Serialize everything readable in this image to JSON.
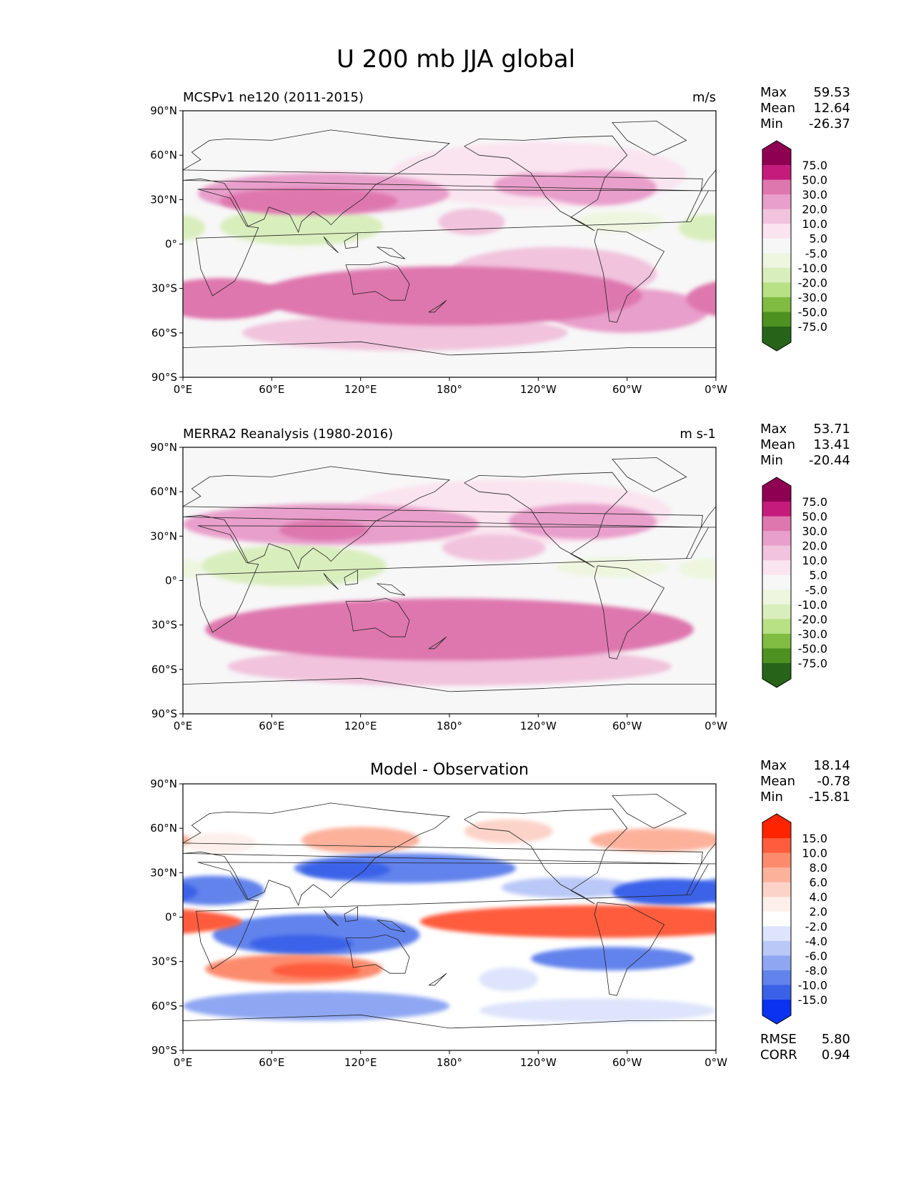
{
  "figure_title": "U 200 mb JJA global",
  "chart_data": [
    {
      "type": "heatmap",
      "title": "MCSPv1 ne120 (2011-2015)",
      "units": "m/s",
      "xlabel": "",
      "ylabel": "",
      "xticks": [
        "0°E",
        "60°E",
        "120°E",
        "180°",
        "120°W",
        "60°W",
        "0°W"
      ],
      "yticks": [
        "90°N",
        "60°N",
        "30°N",
        "0°",
        "30°S",
        "60°S",
        "90°S"
      ],
      "xlim": [
        0,
        360
      ],
      "ylim": [
        -90,
        90
      ],
      "stats": {
        "max": "59.53",
        "mean": "12.64",
        "min": "-26.37"
      },
      "colorbar": {
        "levels": [
          "75.0",
          "50.0",
          "30.0",
          "20.0",
          "10.0",
          "5.0",
          "-5.0",
          "-10.0",
          "-20.0",
          "-30.0",
          "-50.0",
          "-75.0"
        ],
        "colors": [
          "#8e0152",
          "#c51b7d",
          "#de77ae",
          "#e89fcb",
          "#f1c3dd",
          "#fae4ef",
          "#f7f7f7",
          "#eef6e0",
          "#d9eebd",
          "#b8e186",
          "#7fbc41",
          "#4d9221",
          "#276419"
        ]
      },
      "field": [
        {
          "lon": 240,
          "lat": 47,
          "w": 200,
          "h": 22,
          "u": 8
        },
        {
          "lon": 95,
          "lat": 34,
          "w": 170,
          "h": 14,
          "u": 22
        },
        {
          "lon": 85,
          "lat": 29,
          "w": 120,
          "h": 9,
          "u": 31
        },
        {
          "lon": 280,
          "lat": 38,
          "w": 80,
          "h": 12,
          "u": 21
        },
        {
          "lon": 240,
          "lat": 40,
          "w": 60,
          "h": 8,
          "u": 24
        },
        {
          "lon": 195,
          "lat": 15,
          "w": 45,
          "h": 9,
          "u": 12
        },
        {
          "lon": 80,
          "lat": 12,
          "w": 110,
          "h": 13,
          "u": -16
        },
        {
          "lon": 355,
          "lat": 11,
          "w": 40,
          "h": 9,
          "u": -14
        },
        {
          "lon": 295,
          "lat": 15,
          "w": 60,
          "h": 7,
          "u": -8
        },
        {
          "lon": 180,
          "lat": -35,
          "w": 260,
          "h": 20,
          "u": 34
        },
        {
          "lon": 160,
          "lat": -30,
          "w": 95,
          "h": 7,
          "u": 42
        },
        {
          "lon": 25,
          "lat": -37,
          "w": 90,
          "h": 14,
          "u": 32
        },
        {
          "lon": 300,
          "lat": -45,
          "w": 110,
          "h": 15,
          "u": 27
        },
        {
          "lon": 150,
          "lat": -60,
          "w": 220,
          "h": 12,
          "u": 12
        },
        {
          "lon": 250,
          "lat": -20,
          "w": 140,
          "h": 18,
          "u": 16
        }
      ]
    },
    {
      "type": "heatmap",
      "title": "MERRA2 Reanalysis (1980-2016)",
      "units": "m s-1",
      "xlabel": "",
      "ylabel": "",
      "xticks": [
        "0°E",
        "60°E",
        "120°E",
        "180°",
        "120°W",
        "60°W",
        "0°W"
      ],
      "yticks": [
        "90°N",
        "60°N",
        "30°N",
        "0°",
        "30°S",
        "60°S",
        "90°S"
      ],
      "xlim": [
        0,
        360
      ],
      "ylim": [
        -90,
        90
      ],
      "stats": {
        "max": "53.71",
        "mean": "13.41",
        "min": "-20.44"
      },
      "colorbar": {
        "levels": [
          "75.0",
          "50.0",
          "30.0",
          "20.0",
          "10.0",
          "5.0",
          "-5.0",
          "-10.0",
          "-20.0",
          "-30.0",
          "-50.0",
          "-75.0"
        ],
        "colors": [
          "#8e0152",
          "#c51b7d",
          "#de77ae",
          "#e89fcb",
          "#f1c3dd",
          "#fae4ef",
          "#f7f7f7",
          "#eef6e0",
          "#d9eebd",
          "#b8e186",
          "#7fbc41",
          "#4d9221",
          "#276419"
        ]
      },
      "field": [
        {
          "lon": 220,
          "lat": 46,
          "w": 220,
          "h": 22,
          "u": 8
        },
        {
          "lon": 100,
          "lat": 38,
          "w": 200,
          "h": 14,
          "u": 21
        },
        {
          "lon": 95,
          "lat": 34,
          "w": 60,
          "h": 7,
          "u": 31
        },
        {
          "lon": 270,
          "lat": 40,
          "w": 100,
          "h": 12,
          "u": 21
        },
        {
          "lon": 210,
          "lat": 22,
          "w": 70,
          "h": 9,
          "u": 12
        },
        {
          "lon": 75,
          "lat": 10,
          "w": 125,
          "h": 14,
          "u": -14
        },
        {
          "lon": 290,
          "lat": 9,
          "w": 75,
          "h": 7,
          "u": -7
        },
        {
          "lon": 355,
          "lat": 8,
          "w": 40,
          "h": 7,
          "u": -9
        },
        {
          "lon": 180,
          "lat": -33,
          "w": 330,
          "h": 21,
          "u": 32
        },
        {
          "lon": 160,
          "lat": -30,
          "w": 90,
          "h": 6,
          "u": 40
        },
        {
          "lon": 180,
          "lat": -58,
          "w": 300,
          "h": 13,
          "u": 18
        },
        {
          "lon": 145,
          "lat": -47,
          "w": 60,
          "h": 6,
          "u": 12
        }
      ]
    },
    {
      "type": "heatmap",
      "title": "Model - Observation",
      "units": "",
      "xlabel": "",
      "ylabel": "",
      "xticks": [
        "0°E",
        "60°E",
        "120°E",
        "180°",
        "120°W",
        "60°W",
        "0°W"
      ],
      "yticks": [
        "90°N",
        "60°N",
        "30°N",
        "0°",
        "30°S",
        "60°S",
        "90°S"
      ],
      "xlim": [
        0,
        360
      ],
      "ylim": [
        -90,
        90
      ],
      "stats": {
        "max": "18.14",
        "mean": "-0.78",
        "min": "-15.81"
      },
      "metrics": {
        "rmse": "5.80",
        "corr": "0.94"
      },
      "colorbar": {
        "levels": [
          "15.0",
          "10.0",
          "8.0",
          "6.0",
          "4.0",
          "2.0",
          "-2.0",
          "-4.0",
          "-6.0",
          "-8.0",
          "-10.0",
          "-15.0"
        ],
        "colors": [
          "#ff2400",
          "#fe5c3c",
          "#fc8b6d",
          "#fcb19b",
          "#fcd3c8",
          "#fdefea",
          "#ffffff",
          "#dde4fb",
          "#bac8f7",
          "#8fa7f2",
          "#6283ec",
          "#3a62e8",
          "#0a32f0"
        ]
      },
      "field": [
        {
          "lon": 120,
          "lat": 52,
          "w": 80,
          "h": 9,
          "u": 7
        },
        {
          "lon": 220,
          "lat": 58,
          "w": 60,
          "h": 8,
          "u": 6
        },
        {
          "lon": 320,
          "lat": 52,
          "w": 90,
          "h": 8,
          "u": 7
        },
        {
          "lon": 25,
          "lat": 50,
          "w": 50,
          "h": 7,
          "u": 3
        },
        {
          "lon": 150,
          "lat": 33,
          "w": 150,
          "h": 10,
          "u": -9
        },
        {
          "lon": 110,
          "lat": 32,
          "w": 60,
          "h": 6,
          "u": -12
        },
        {
          "lon": 20,
          "lat": 18,
          "w": 70,
          "h": 10,
          "u": -8
        },
        {
          "lon": 330,
          "lat": 17,
          "w": 80,
          "h": 9,
          "u": -10
        },
        {
          "lon": 260,
          "lat": 20,
          "w": 90,
          "h": 7,
          "u": -5
        },
        {
          "lon": 90,
          "lat": -12,
          "w": 140,
          "h": 14,
          "u": -9
        },
        {
          "lon": 80,
          "lat": -18,
          "w": 70,
          "h": 6,
          "u": -12
        },
        {
          "lon": 280,
          "lat": -3,
          "w": 240,
          "h": 11,
          "u": 11
        },
        {
          "lon": 300,
          "lat": -2,
          "w": 100,
          "h": 6,
          "u": 15
        },
        {
          "lon": 0,
          "lat": -2,
          "w": 40,
          "h": 7,
          "u": 6
        },
        {
          "lon": 75,
          "lat": -35,
          "w": 120,
          "h": 10,
          "u": 9
        },
        {
          "lon": 90,
          "lat": -36,
          "w": 60,
          "h": 5,
          "u": 14
        },
        {
          "lon": 290,
          "lat": -28,
          "w": 110,
          "h": 8,
          "u": -8
        },
        {
          "lon": 90,
          "lat": -60,
          "w": 180,
          "h": 10,
          "u": -6
        },
        {
          "lon": 220,
          "lat": -42,
          "w": 40,
          "h": 8,
          "u": -3
        },
        {
          "lon": 280,
          "lat": -63,
          "w": 160,
          "h": 8,
          "u": -3
        }
      ]
    }
  ],
  "labels": {
    "max": "Max",
    "mean": "Mean",
    "min": "Min",
    "rmse": "RMSE",
    "corr": "CORR"
  }
}
